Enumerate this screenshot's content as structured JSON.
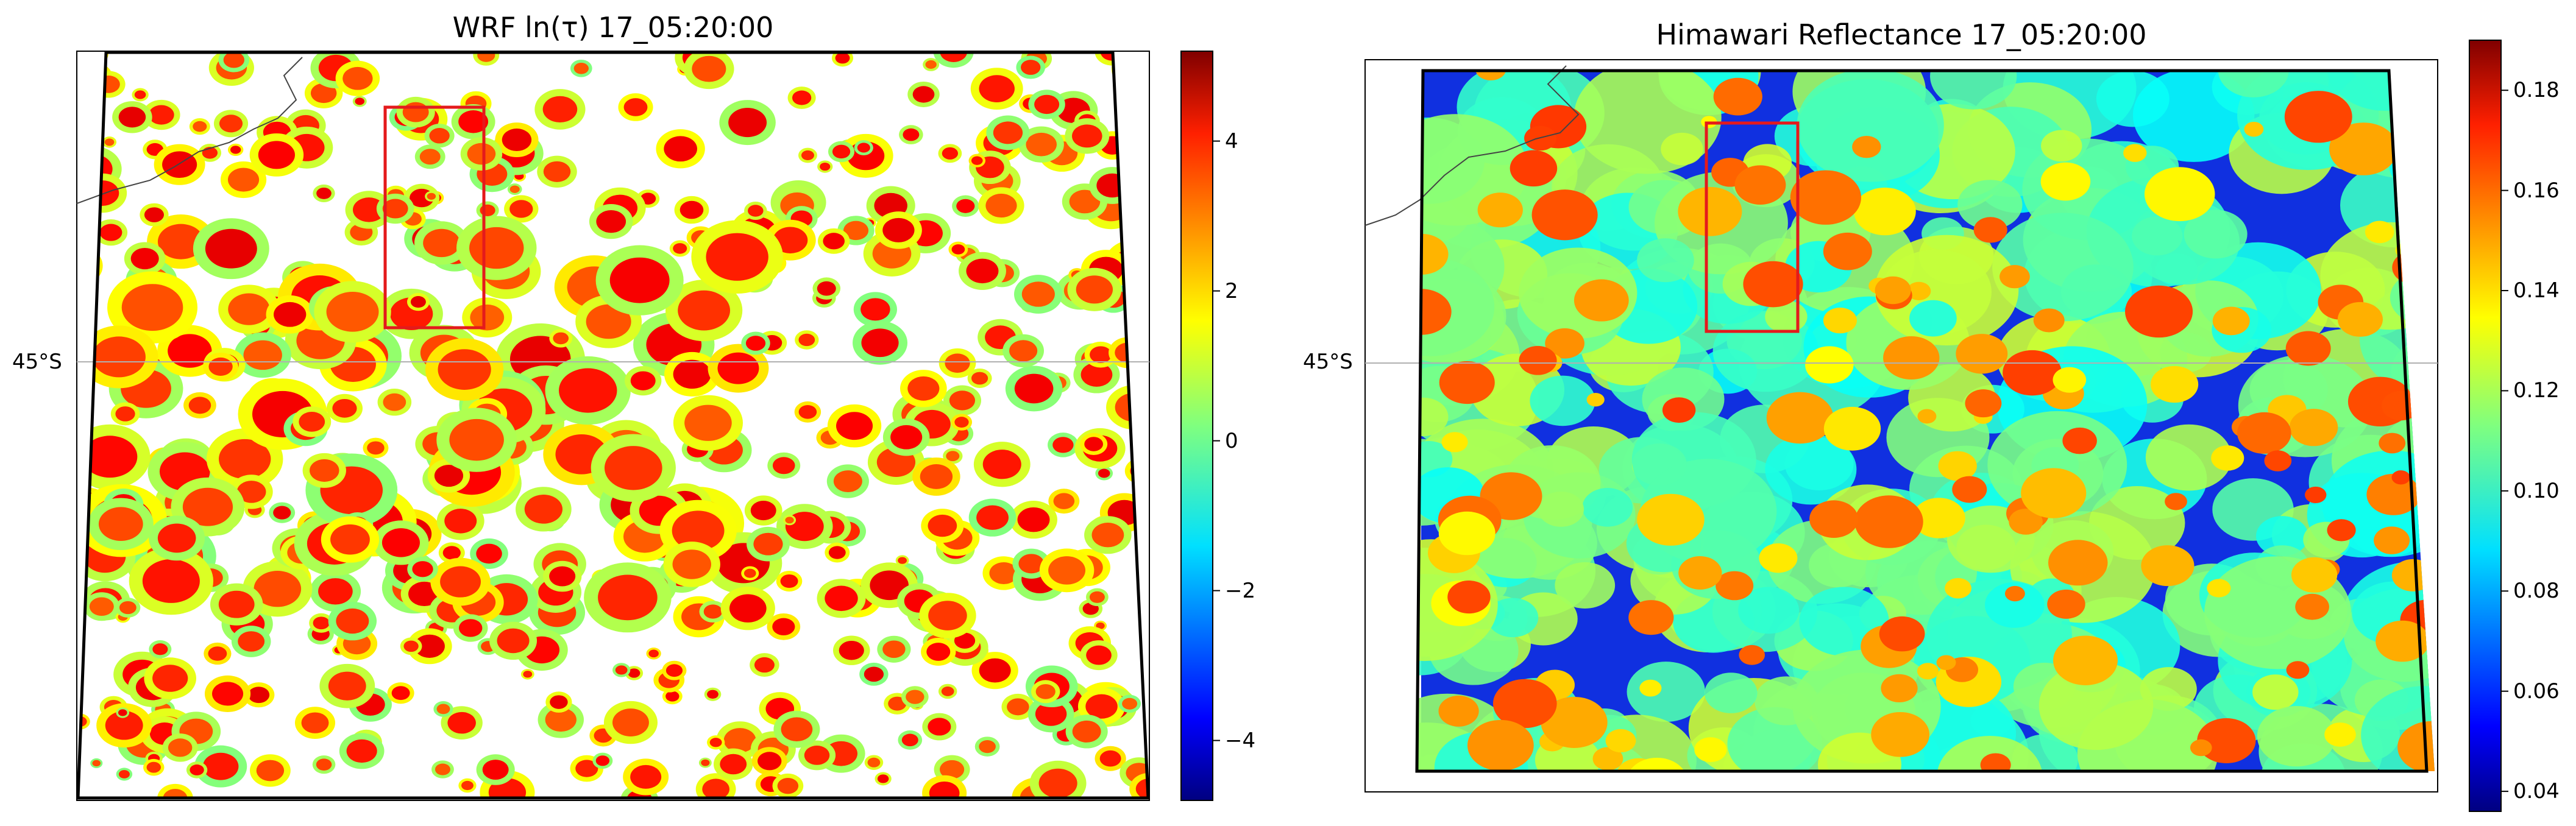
{
  "chart_data": [
    {
      "type": "heatmap",
      "title": "WRF ln(τ) 17_05:20:00",
      "colormap": "jet",
      "missing_color": "#ffffff",
      "latitude_label": "45°S",
      "colorbar": {
        "range": [
          -4.8,
          5.2
        ],
        "ticks": [
          -4,
          -2,
          0,
          2,
          4
        ],
        "tick_labels": [
          "−4",
          "−2",
          "0",
          "2",
          "4"
        ]
      },
      "highlight_box": "red rectangle, upper-middle region",
      "description": "Cloud optical depth field with scattered cumulus cells, large clear (missing) areas"
    },
    {
      "type": "heatmap",
      "title": "Himawari Reflectance 17_05:20:00",
      "colormap": "jet",
      "latitude_label": "45°S",
      "colorbar": {
        "range": [
          0.036,
          0.19
        ],
        "ticks": [
          0.04,
          0.06,
          0.08,
          0.1,
          0.12,
          0.14,
          0.16,
          0.18
        ],
        "tick_labels": [
          "0.04",
          "0.06",
          "0.08",
          "0.10",
          "0.12",
          "0.14",
          "0.16",
          "0.18"
        ]
      },
      "highlight_box": "red rectangle, upper-middle region",
      "description": "Satellite reflectance field; dark blue clear-sky bands, yellow/orange cloud areas"
    }
  ],
  "colors": {
    "box": "#e41a1c",
    "domain_outline": "#000000",
    "coast": "#444444",
    "gridline": "#b0b0b0"
  }
}
